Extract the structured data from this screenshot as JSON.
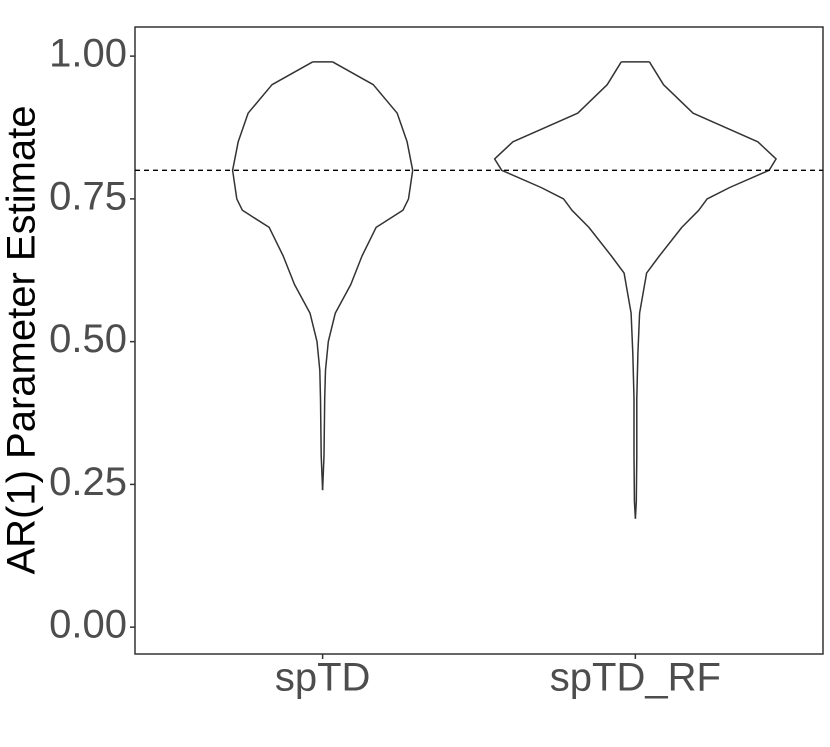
{
  "chart_data": {
    "type": "violin",
    "y_label": "AR(1) Parameter Estimate",
    "categories": [
      "spTD",
      "spTD_RF"
    ],
    "violins": [
      {
        "y": [
          0.24,
          0.3,
          0.4,
          0.45,
          0.5,
          0.55,
          0.6,
          0.65,
          0.7,
          0.73,
          0.75,
          0.8,
          0.85,
          0.9,
          0.95,
          0.99
        ],
        "density": [
          0,
          0.01,
          0.015,
          0.02,
          0.04,
          0.09,
          0.2,
          0.28,
          0.38,
          0.57,
          0.61,
          0.64,
          0.6,
          0.53,
          0.36,
          0.07
        ]
      },
      {
        "y": [
          0.19,
          0.22,
          0.3,
          0.4,
          0.48,
          0.55,
          0.62,
          0.65,
          0.7,
          0.73,
          0.75,
          0.77,
          0.8,
          0.82,
          0.85,
          0.9,
          0.95,
          0.99
        ],
        "density": [
          0,
          0.007,
          0.01,
          0.01,
          0.018,
          0.03,
          0.08,
          0.17,
          0.33,
          0.45,
          0.51,
          0.67,
          0.95,
          1.0,
          0.87,
          0.41,
          0.2,
          0.1
        ]
      }
    ],
    "color": "#333333",
    "reference_line": 0.8,
    "ylim": [
      -0.047,
      1.051
    ],
    "yticks": [
      {
        "value": 0,
        "label": "0.00"
      },
      {
        "value": 0.25,
        "label": "0.25"
      },
      {
        "value": 0.5,
        "label": "0.50"
      },
      {
        "value": 0.75,
        "label": "0.75"
      },
      {
        "value": 1,
        "label": "1.00"
      }
    ],
    "grid": false
  }
}
